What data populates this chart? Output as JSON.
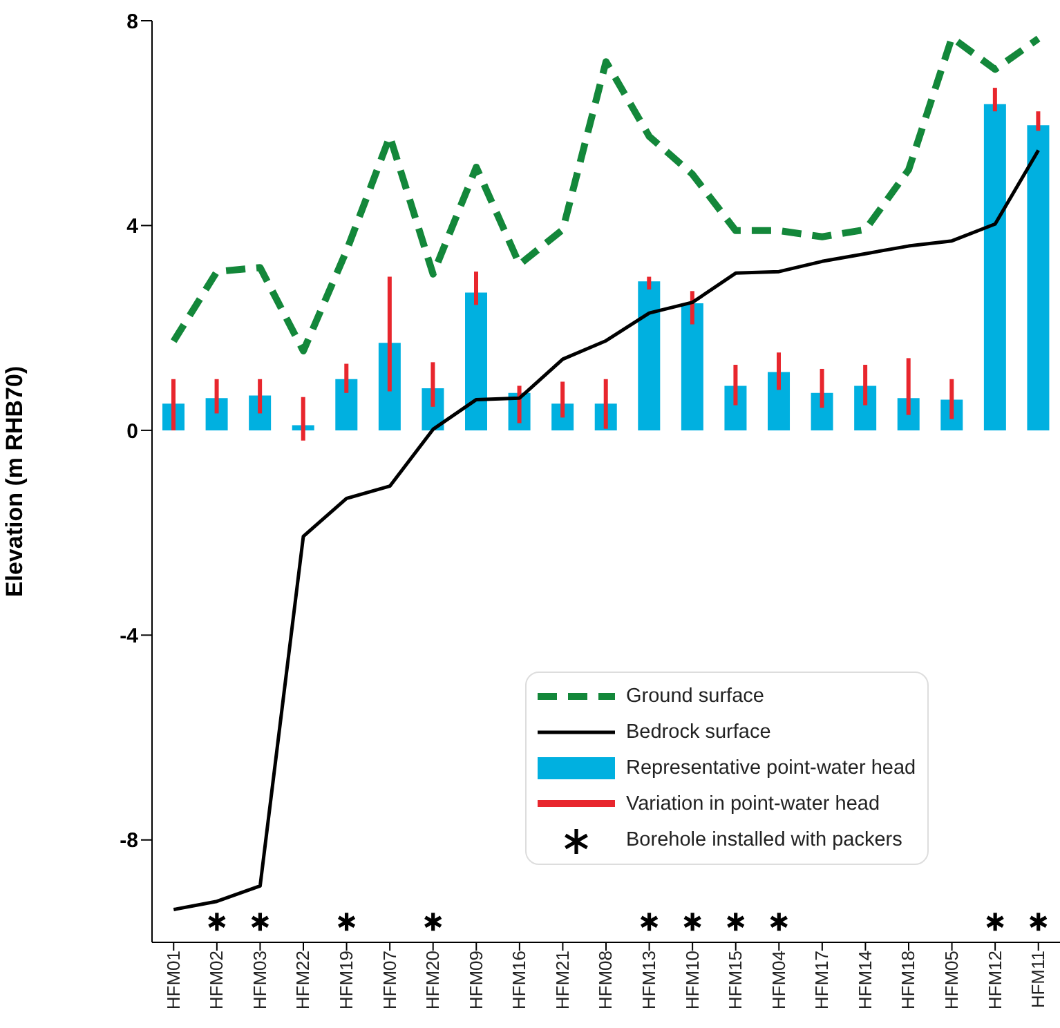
{
  "chart_data": {
    "type": "bar",
    "ylabel": "Elevation (m RHB70)",
    "categories": [
      "HFM01",
      "HFM02",
      "HFM03",
      "HFM22",
      "HFM19",
      "HFM07",
      "HFM20",
      "HFM09",
      "HFM16",
      "HFM21",
      "HFM08",
      "HFM13",
      "HFM10",
      "HFM15",
      "HFM04",
      "HFM17",
      "HFM14",
      "HFM18",
      "HFM05",
      "HFM12",
      "HFM11"
    ],
    "ylim": [
      -10,
      8
    ],
    "yticks": [
      -8,
      -4,
      0,
      4,
      8
    ],
    "grid": false,
    "legend": "bottom right",
    "series": [
      {
        "name": "Ground surface",
        "type": "line",
        "color": "#13873a",
        "line_style": "dashed",
        "marker": "none",
        "values": [
          1.74,
          3.1,
          3.18,
          1.55,
          3.51,
          5.74,
          3.05,
          5.14,
          3.24,
          3.92,
          7.2,
          5.74,
          5.0,
          3.9,
          3.9,
          3.78,
          3.92,
          5.09,
          7.67,
          7.05,
          7.65
        ]
      },
      {
        "name": "Bedrock surface",
        "type": "line",
        "color": "#000000",
        "line_style": "solid",
        "marker": "none",
        "values": [
          -9.36,
          -9.2,
          -8.9,
          -2.07,
          -1.33,
          -1.09,
          0.02,
          0.6,
          0.63,
          1.39,
          1.75,
          2.29,
          2.5,
          3.07,
          3.1,
          3.3,
          3.45,
          3.6,
          3.7,
          4.03,
          5.47
        ]
      },
      {
        "name": "Representative point-water head",
        "color": "#00b0e0",
        "values": [
          0.52,
          0.63,
          0.68,
          0.1,
          1.0,
          1.71,
          0.82,
          2.69,
          0.73,
          0.52,
          0.52,
          2.91,
          2.48,
          0.87,
          1.14,
          0.73,
          0.87,
          0.63,
          0.6,
          6.37,
          5.96
        ]
      },
      {
        "name": "Variation in point-water head",
        "color": "#e8262d",
        "base": [
          0.0,
          0.33,
          0.33,
          -0.2,
          0.73,
          0.76,
          0.46,
          2.45,
          0.14,
          0.25,
          0.03,
          2.75,
          2.07,
          0.49,
          0.79,
          0.44,
          0.49,
          0.3,
          0.22,
          6.23,
          5.85
        ],
        "values": [
          1.0,
          0.67,
          0.67,
          0.85,
          0.57,
          2.24,
          0.87,
          0.65,
          0.73,
          0.7,
          0.97,
          0.25,
          0.65,
          0.79,
          0.73,
          0.76,
          0.79,
          1.11,
          0.78,
          0.46,
          0.38
        ]
      },
      {
        "name": "Borehole installed with packers",
        "type": "scatter",
        "color": "#000000",
        "marker": "cross",
        "values": [
          null,
          -9.6,
          -9.6,
          null,
          -9.6,
          null,
          -9.6,
          null,
          null,
          null,
          null,
          -9.6,
          -9.6,
          -9.6,
          -9.6,
          null,
          null,
          null,
          null,
          -9.6,
          -9.6
        ]
      }
    ]
  }
}
